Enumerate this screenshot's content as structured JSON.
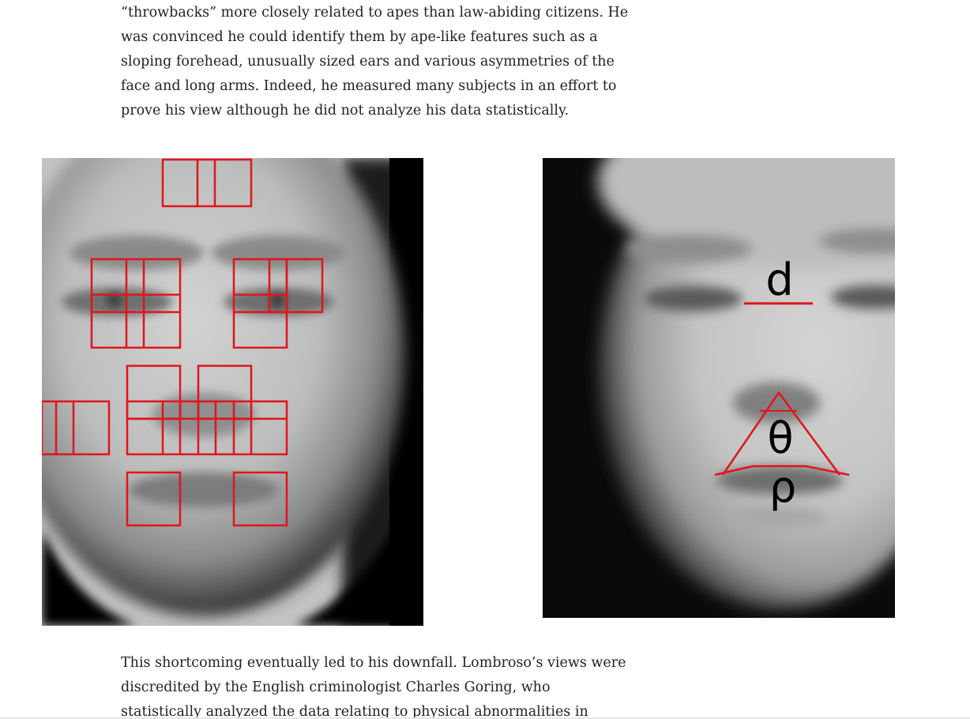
{
  "article": {
    "paragraph_top": {
      "lines": [
        "“throwbacks” more closely related to apes than law-abiding citizens. He",
        "was convinced he could identify them by ape-like features such as a",
        "sloping forehead, unusually sized ears and various asymmetries of the",
        "face and long arms. Indeed, he measured many subjects in an effort to",
        "prove his view although he did not analyze his data statistically."
      ]
    },
    "paragraph_bottom": {
      "lines": [
        "This shortcoming eventually led to his downfall. Lombroso’s views were",
        "discredited by the English criminologist Charles Goring, who",
        "statistically analyzed the data relating to physical abnormalities in"
      ]
    }
  },
  "figures": {
    "left": {
      "description_icon": "averaged-face-with-grid-boxes",
      "overlay_color": "#e0151b"
    },
    "right": {
      "description_icon": "averaged-face-with-measurements",
      "overlay_color": "#e0151b",
      "labels": {
        "distance": "d",
        "angle": "θ",
        "curvature": "ρ"
      }
    }
  }
}
